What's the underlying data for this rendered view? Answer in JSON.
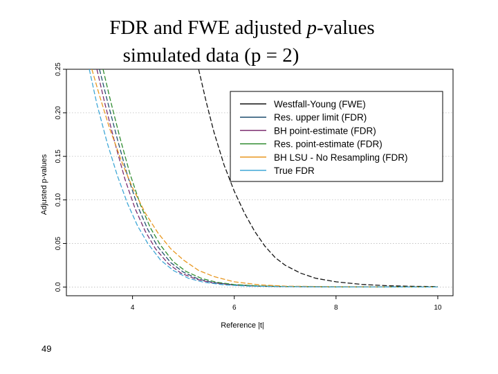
{
  "slide": {
    "title_line1_prefix": "FDR and FWE adjusted ",
    "title_line1_italic": "p",
    "title_line1_suffix": "-values",
    "title_line2": "simulated data (p = 2)",
    "slide_number": "49"
  },
  "colors": {
    "westfall": "#111111",
    "res_upper": "#1f4f6f",
    "bh_point": "#7a2a6e",
    "res_point": "#2e8b2e",
    "bh_lsu": "#e8961e",
    "true_fdr": "#3fa7d6",
    "grid": "#bbbbbb"
  },
  "chart_data": {
    "type": "line",
    "title": "",
    "xlabel": "Reference |t|",
    "ylabel": "Adjusted p-values",
    "xlim": [
      2.7,
      10.3
    ],
    "ylim": [
      -0.01,
      0.25
    ],
    "xticks": [
      4,
      6,
      8,
      10
    ],
    "yticks": [
      0.0,
      0.05,
      0.1,
      0.15,
      0.2,
      0.25
    ],
    "xtick_labels": [
      "4",
      "6",
      "8",
      "10"
    ],
    "ytick_labels": [
      "0.0",
      "0.05",
      "0.10",
      "0.15",
      "0.20",
      "0.25"
    ],
    "grid": true,
    "legend_position": "top-right",
    "series": [
      {
        "name": "Westfall-Young (FWE)",
        "color_key": "westfall",
        "x": [
          5.3,
          5.45,
          5.6,
          5.8,
          6.0,
          6.2,
          6.4,
          6.6,
          6.8,
          7.0,
          7.3,
          7.6,
          8.0,
          8.5,
          9.0,
          9.5,
          10.0
        ],
        "y": [
          0.25,
          0.212,
          0.178,
          0.14,
          0.11,
          0.085,
          0.064,
          0.047,
          0.034,
          0.025,
          0.016,
          0.01,
          0.006,
          0.003,
          0.0015,
          0.0008,
          0.0005
        ]
      },
      {
        "name": "Res. upper limit (FDR)",
        "color_key": "res_upper",
        "x": [
          3.35,
          3.5,
          3.7,
          3.9,
          4.1,
          4.3,
          4.5,
          4.75,
          5.0,
          5.3,
          5.6,
          6.0,
          6.5,
          7.0,
          8.0,
          9.0,
          10.0
        ],
        "y": [
          0.25,
          0.215,
          0.17,
          0.128,
          0.093,
          0.066,
          0.046,
          0.028,
          0.017,
          0.009,
          0.005,
          0.0025,
          0.001,
          0.0005,
          0.0002,
          0.0001,
          0.0
        ]
      },
      {
        "name": "BH point-estimate (FDR)",
        "color_key": "bh_point",
        "x": [
          3.3,
          3.45,
          3.65,
          3.85,
          4.05,
          4.25,
          4.45,
          4.7,
          4.95,
          5.25,
          5.55,
          6.0,
          6.5,
          7.0,
          8.0,
          9.0,
          10.0
        ],
        "y": [
          0.25,
          0.212,
          0.166,
          0.124,
          0.09,
          0.064,
          0.044,
          0.027,
          0.016,
          0.009,
          0.005,
          0.0022,
          0.001,
          0.0005,
          0.0002,
          0.0001,
          0.0
        ]
      },
      {
        "name": "Res. point-estimate (FDR)",
        "color_key": "res_point",
        "x": [
          3.42,
          3.55,
          3.75,
          3.95,
          4.15,
          4.35,
          4.55,
          4.8,
          5.05,
          5.35,
          5.65,
          6.0,
          6.5,
          7.0,
          8.0,
          9.0,
          10.0
        ],
        "y": [
          0.25,
          0.218,
          0.172,
          0.13,
          0.095,
          0.068,
          0.048,
          0.029,
          0.018,
          0.01,
          0.0055,
          0.0028,
          0.0012,
          0.0006,
          0.0002,
          0.0001,
          0.0
        ]
      },
      {
        "name": "BH LSU - No Resampling (FDR)",
        "color_key": "bh_lsu",
        "x": [
          3.2,
          3.35,
          3.55,
          3.8,
          4.0,
          4.25,
          4.5,
          4.75,
          5.0,
          5.3,
          5.6,
          6.0,
          6.5,
          7.0,
          8.0,
          9.0,
          10.0
        ],
        "y": [
          0.25,
          0.22,
          0.182,
          0.142,
          0.114,
          0.085,
          0.062,
          0.044,
          0.031,
          0.019,
          0.012,
          0.006,
          0.0025,
          0.001,
          0.0004,
          0.0002,
          0.0001
        ]
      },
      {
        "name": "True FDR",
        "color_key": "true_fdr",
        "x": [
          3.15,
          3.3,
          3.5,
          3.7,
          3.9,
          4.1,
          4.3,
          4.55,
          4.8,
          5.1,
          5.4,
          5.8,
          6.3,
          7.0,
          8.0,
          9.0,
          10.0
        ],
        "y": [
          0.25,
          0.21,
          0.166,
          0.128,
          0.096,
          0.07,
          0.05,
          0.031,
          0.019,
          0.01,
          0.0055,
          0.0025,
          0.001,
          0.0004,
          0.0002,
          0.0001,
          0.0
        ]
      }
    ]
  }
}
